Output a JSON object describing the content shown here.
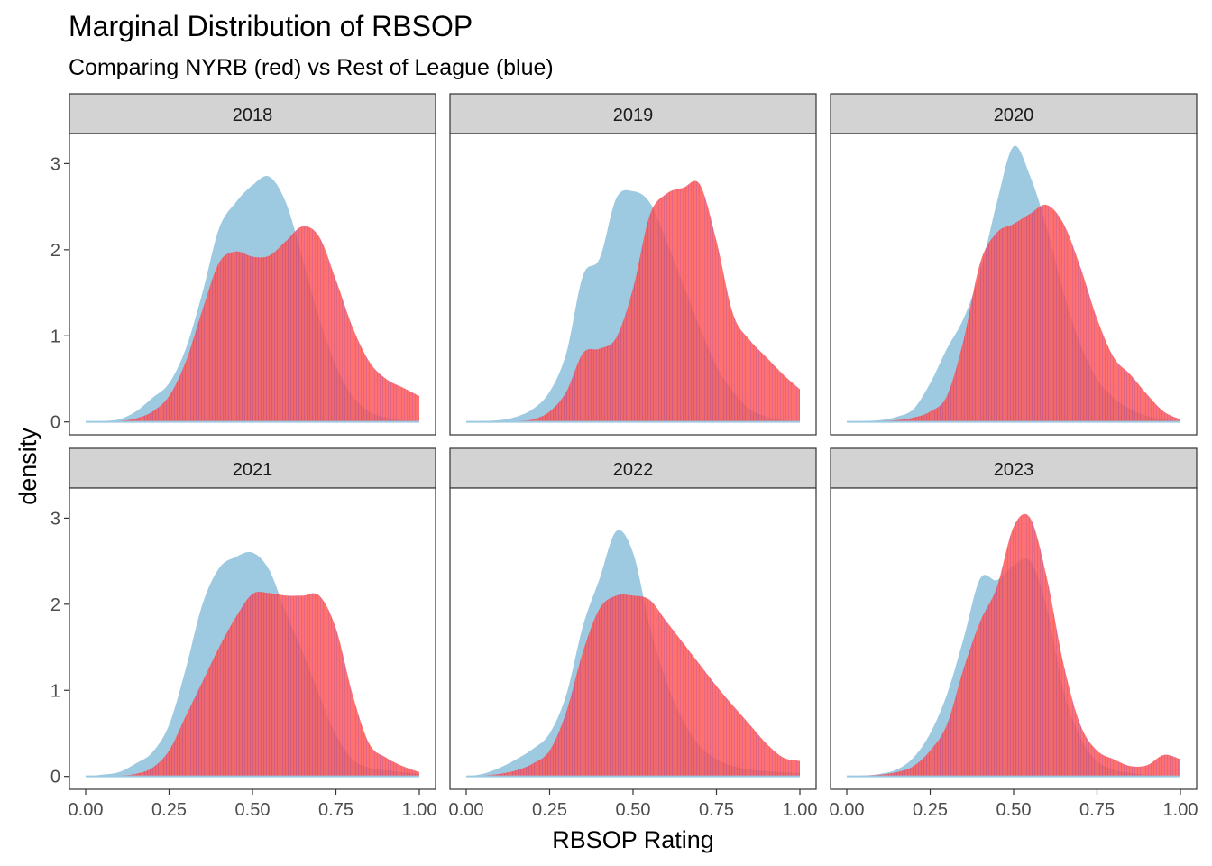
{
  "colors": {
    "league": "#9ecae1",
    "nyrb": "#ff4d4d",
    "nyrb_hatch": "#e8485c",
    "strip_bg": "#d3d3d3",
    "panel_border": "#333333"
  },
  "chart_data": {
    "type": "area",
    "title": "Marginal Distribution of RBSOP",
    "subtitle": "Comparing NYRB (red) vs Rest of League (blue)",
    "xlabel": "RBSOP Rating",
    "ylabel": "density",
    "xlim": [
      0,
      1
    ],
    "ylim": [
      -0.15,
      3.35
    ],
    "x_ticks": [
      0,
      0.25,
      0.5,
      0.75,
      1.0
    ],
    "x_tick_labels": [
      "0.00",
      "0.25",
      "0.50",
      "0.75",
      "1.00"
    ],
    "y_ticks": [
      0,
      1,
      2,
      3
    ],
    "y_tick_labels": [
      "0",
      "1",
      "2",
      "3"
    ],
    "grid": false,
    "x": [
      0.0,
      0.05,
      0.1,
      0.15,
      0.2,
      0.25,
      0.3,
      0.35,
      0.4,
      0.45,
      0.5,
      0.55,
      0.6,
      0.65,
      0.7,
      0.75,
      0.8,
      0.85,
      0.9,
      0.95,
      1.0
    ],
    "panels": [
      {
        "label": "2018",
        "series": [
          {
            "key": "league",
            "values": [
              0,
              0.01,
              0.03,
              0.12,
              0.28,
              0.45,
              0.85,
              1.5,
              2.25,
              2.55,
              2.75,
              2.85,
              2.55,
              1.9,
              1.2,
              0.65,
              0.3,
              0.12,
              0.05,
              0.02,
              0.01
            ]
          },
          {
            "key": "nyrb",
            "values": [
              0,
              0,
              0.01,
              0.04,
              0.12,
              0.3,
              0.7,
              1.3,
              1.85,
              1.98,
              1.92,
              1.93,
              2.1,
              2.27,
              2.15,
              1.65,
              1.1,
              0.7,
              0.5,
              0.4,
              0.3
            ]
          }
        ]
      },
      {
        "label": "2019",
        "series": [
          {
            "key": "league",
            "values": [
              0,
              0.01,
              0.02,
              0.06,
              0.15,
              0.35,
              0.8,
              1.7,
              1.9,
              2.6,
              2.68,
              2.55,
              2.1,
              1.6,
              1.1,
              0.65,
              0.35,
              0.15,
              0.06,
              0.02,
              0.01
            ]
          },
          {
            "key": "nyrb",
            "values": [
              0,
              0,
              0,
              0.01,
              0.03,
              0.12,
              0.35,
              0.8,
              0.85,
              0.98,
              1.55,
              2.4,
              2.65,
              2.72,
              2.76,
              2.1,
              1.25,
              0.95,
              0.75,
              0.55,
              0.38
            ]
          }
        ]
      },
      {
        "label": "2020",
        "series": [
          {
            "key": "league",
            "values": [
              0,
              0.01,
              0.02,
              0.06,
              0.15,
              0.45,
              0.85,
              1.2,
              1.75,
              2.55,
              3.2,
              2.85,
              2.25,
              1.5,
              0.9,
              0.5,
              0.28,
              0.15,
              0.07,
              0.03,
              0.01
            ]
          },
          {
            "key": "nyrb",
            "values": [
              0,
              0,
              0.01,
              0.02,
              0.05,
              0.12,
              0.3,
              0.95,
              1.85,
              2.2,
              2.3,
              2.42,
              2.52,
              2.3,
              1.8,
              1.2,
              0.75,
              0.55,
              0.32,
              0.12,
              0.03
            ]
          }
        ]
      },
      {
        "label": "2021",
        "series": [
          {
            "key": "league",
            "values": [
              0,
              0.02,
              0.05,
              0.15,
              0.28,
              0.6,
              1.25,
              2.0,
              2.42,
              2.55,
              2.6,
              2.4,
              1.9,
              1.45,
              0.95,
              0.48,
              0.2,
              0.1,
              0.07,
              0.05,
              0.03
            ]
          },
          {
            "key": "nyrb",
            "values": [
              0,
              0,
              0.01,
              0.03,
              0.1,
              0.3,
              0.7,
              1.1,
              1.5,
              1.85,
              2.12,
              2.13,
              2.1,
              2.1,
              2.1,
              1.72,
              0.95,
              0.38,
              0.22,
              0.12,
              0.05
            ]
          }
        ]
      },
      {
        "label": "2022",
        "series": [
          {
            "key": "league",
            "values": [
              0,
              0.03,
              0.1,
              0.2,
              0.32,
              0.5,
              0.95,
              1.75,
              2.3,
              2.85,
              2.6,
              1.75,
              1.1,
              0.65,
              0.35,
              0.2,
              0.12,
              0.08,
              0.06,
              0.05,
              0.04
            ]
          },
          {
            "key": "nyrb",
            "values": [
              0,
              0.01,
              0.03,
              0.07,
              0.15,
              0.3,
              0.75,
              1.45,
              1.95,
              2.1,
              2.1,
              2.05,
              1.8,
              1.55,
              1.3,
              1.05,
              0.82,
              0.6,
              0.38,
              0.22,
              0.18
            ]
          }
        ]
      },
      {
        "label": "2023",
        "series": [
          {
            "key": "league",
            "values": [
              0,
              0.01,
              0.03,
              0.08,
              0.22,
              0.5,
              0.95,
              1.6,
              2.3,
              2.28,
              2.45,
              2.5,
              1.95,
              1.0,
              0.45,
              0.18,
              0.08,
              0.04,
              0.02,
              0.01,
              0.01
            ]
          },
          {
            "key": "nyrb",
            "values": [
              0,
              0.01,
              0.02,
              0.05,
              0.12,
              0.3,
              0.6,
              1.25,
              1.8,
              2.2,
              2.9,
              3.0,
              2.3,
              1.3,
              0.6,
              0.3,
              0.2,
              0.12,
              0.13,
              0.25,
              0.2
            ]
          }
        ]
      }
    ]
  }
}
